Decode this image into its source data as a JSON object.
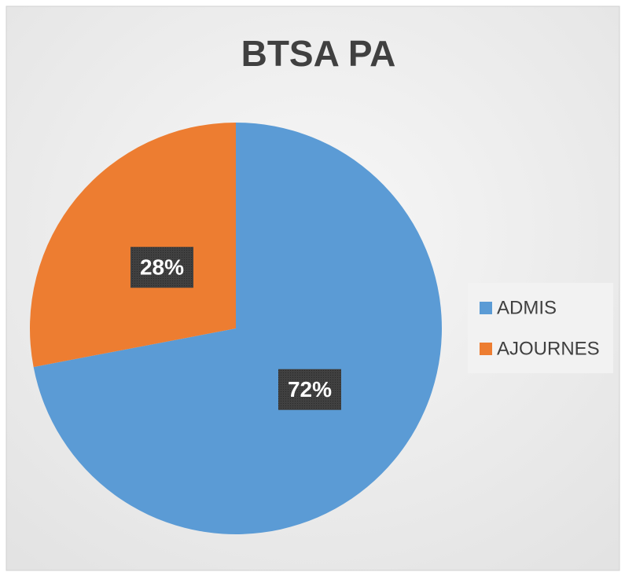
{
  "chart_data": {
    "type": "pie",
    "title": "BTSA PA",
    "categories": [
      "ADMIS",
      "AJOURNES"
    ],
    "values": [
      72,
      28
    ],
    "value_labels": [
      "72%",
      "28%"
    ],
    "colors": [
      "#5b9bd5",
      "#ed7d31"
    ],
    "legend": "right"
  }
}
